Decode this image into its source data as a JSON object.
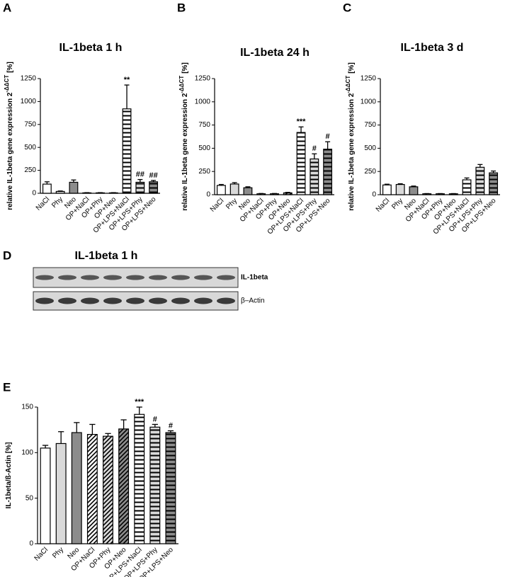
{
  "chart_data": [
    {
      "type": "bar",
      "panel": "A",
      "title": "IL-1beta 1 h",
      "ylabel": "relative IL-1beta gene expression 2",
      "ylabel_superscript": "-ΔΔCT",
      "ylabel_unit": "[%]",
      "categories": [
        "NaCl",
        "Phy",
        "Neo",
        "OP+NaCl",
        "OP+Phy",
        "OP+Neo",
        "OP+LPS+NaCl",
        "OP+LPS+Phy",
        "OP+LPS+Neo"
      ],
      "values": [
        100,
        20,
        120,
        5,
        5,
        5,
        920,
        120,
        125
      ],
      "errors": [
        25,
        5,
        25,
        2,
        2,
        2,
        260,
        30,
        15
      ],
      "annotations": [
        null,
        null,
        null,
        null,
        null,
        null,
        "**",
        "##",
        "##"
      ],
      "colors": [
        "#ffffff",
        "#d9d9d9",
        "#8c8c8c",
        "#ffffff",
        "#d9d9d9",
        "#8c8c8c",
        "#ffffff",
        "#d9d9d9",
        "#8c8c8c"
      ],
      "patterns": [
        "solid",
        "solid",
        "solid",
        "diagonal",
        "diagonal",
        "diagonal",
        "horizontal",
        "horizontal",
        "horizontal"
      ],
      "ylim": [
        0,
        1250
      ],
      "yticks": [
        0,
        250,
        500,
        750,
        1000,
        1250
      ]
    },
    {
      "type": "bar",
      "panel": "B",
      "title": "IL-1beta 24 h",
      "ylabel": "relative IL-1beta gene expression 2",
      "ylabel_superscript": "-ΔΔCT",
      "ylabel_unit": "[%]",
      "categories": [
        "NaCl",
        "Phy",
        "Neo",
        "OP+NaCl",
        "OP+Phy",
        "OP+Neo",
        "OP+LPS+NaCl",
        "OP+LPS+Phy",
        "OP+LPS+Neo"
      ],
      "values": [
        100,
        115,
        75,
        10,
        10,
        20,
        670,
        385,
        490
      ],
      "errors": [
        10,
        15,
        10,
        3,
        3,
        5,
        60,
        55,
        80
      ],
      "annotations": [
        null,
        null,
        null,
        null,
        null,
        null,
        "***",
        "#",
        "#"
      ],
      "colors": [
        "#ffffff",
        "#d9d9d9",
        "#8c8c8c",
        "#ffffff",
        "#d9d9d9",
        "#8c8c8c",
        "#ffffff",
        "#d9d9d9",
        "#8c8c8c"
      ],
      "patterns": [
        "solid",
        "solid",
        "solid",
        "diagonal",
        "diagonal",
        "diagonal",
        "horizontal",
        "horizontal",
        "horizontal"
      ],
      "ylim": [
        0,
        1250
      ],
      "yticks": [
        0,
        250,
        500,
        750,
        1000,
        1250
      ]
    },
    {
      "type": "bar",
      "panel": "C",
      "title": "IL-1beta 3 d",
      "ylabel": "relative IL-1beta gene expression 2",
      "ylabel_superscript": "-ΔΔCT",
      "ylabel_unit": "[%]",
      "categories": [
        "NaCl",
        "Phy",
        "Neo",
        "OP+NaCl",
        "OP+Phy",
        "OP+Neo",
        "OP+LPS+NaCl",
        "OP+LPS+Phy",
        "OP+LPS+Neo"
      ],
      "values": [
        105,
        110,
        85,
        10,
        10,
        10,
        160,
        295,
        235
      ],
      "errors": [
        8,
        8,
        8,
        2,
        2,
        2,
        20,
        30,
        20
      ],
      "colors": [
        "#ffffff",
        "#d9d9d9",
        "#8c8c8c",
        "#ffffff",
        "#d9d9d9",
        "#8c8c8c",
        "#ffffff",
        "#d9d9d9",
        "#8c8c8c"
      ],
      "patterns": [
        "solid",
        "solid",
        "solid",
        "diagonal",
        "diagonal",
        "diagonal",
        "horizontal",
        "horizontal",
        "horizontal"
      ],
      "ylim": [
        0,
        1250
      ],
      "yticks": [
        0,
        250,
        500,
        750,
        1000,
        1250
      ]
    },
    {
      "type": "bar",
      "panel": "E",
      "ylabel": "IL-1beta/ß-Actin [%]",
      "categories": [
        "NaCl",
        "Phy",
        "Neo",
        "OP+NaCl",
        "OP+Phy",
        "OP+Neo",
        "OP+LPS+NaCl",
        "OP+LPS+Phy",
        "OP+LPS+Neo"
      ],
      "values": [
        105,
        110,
        122,
        120,
        118,
        126,
        142,
        128,
        122
      ],
      "errors": [
        3,
        13,
        11,
        11,
        3,
        10,
        8,
        3,
        2
      ],
      "annotations": [
        null,
        null,
        null,
        null,
        null,
        null,
        "***",
        "#",
        "#"
      ],
      "colors": [
        "#ffffff",
        "#d9d9d9",
        "#8c8c8c",
        "#ffffff",
        "#d9d9d9",
        "#8c8c8c",
        "#ffffff",
        "#d9d9d9",
        "#8c8c8c"
      ],
      "patterns": [
        "solid",
        "solid",
        "solid",
        "diagonal",
        "diagonal",
        "diagonal",
        "horizontal",
        "horizontal",
        "horizontal"
      ],
      "ylim": [
        0,
        150
      ],
      "yticks": [
        0,
        50,
        100,
        150
      ]
    }
  ],
  "blot": {
    "panel": "D",
    "title": "IL-1beta 1 h",
    "bands": [
      "IL-1beta",
      "β–Actin"
    ]
  }
}
